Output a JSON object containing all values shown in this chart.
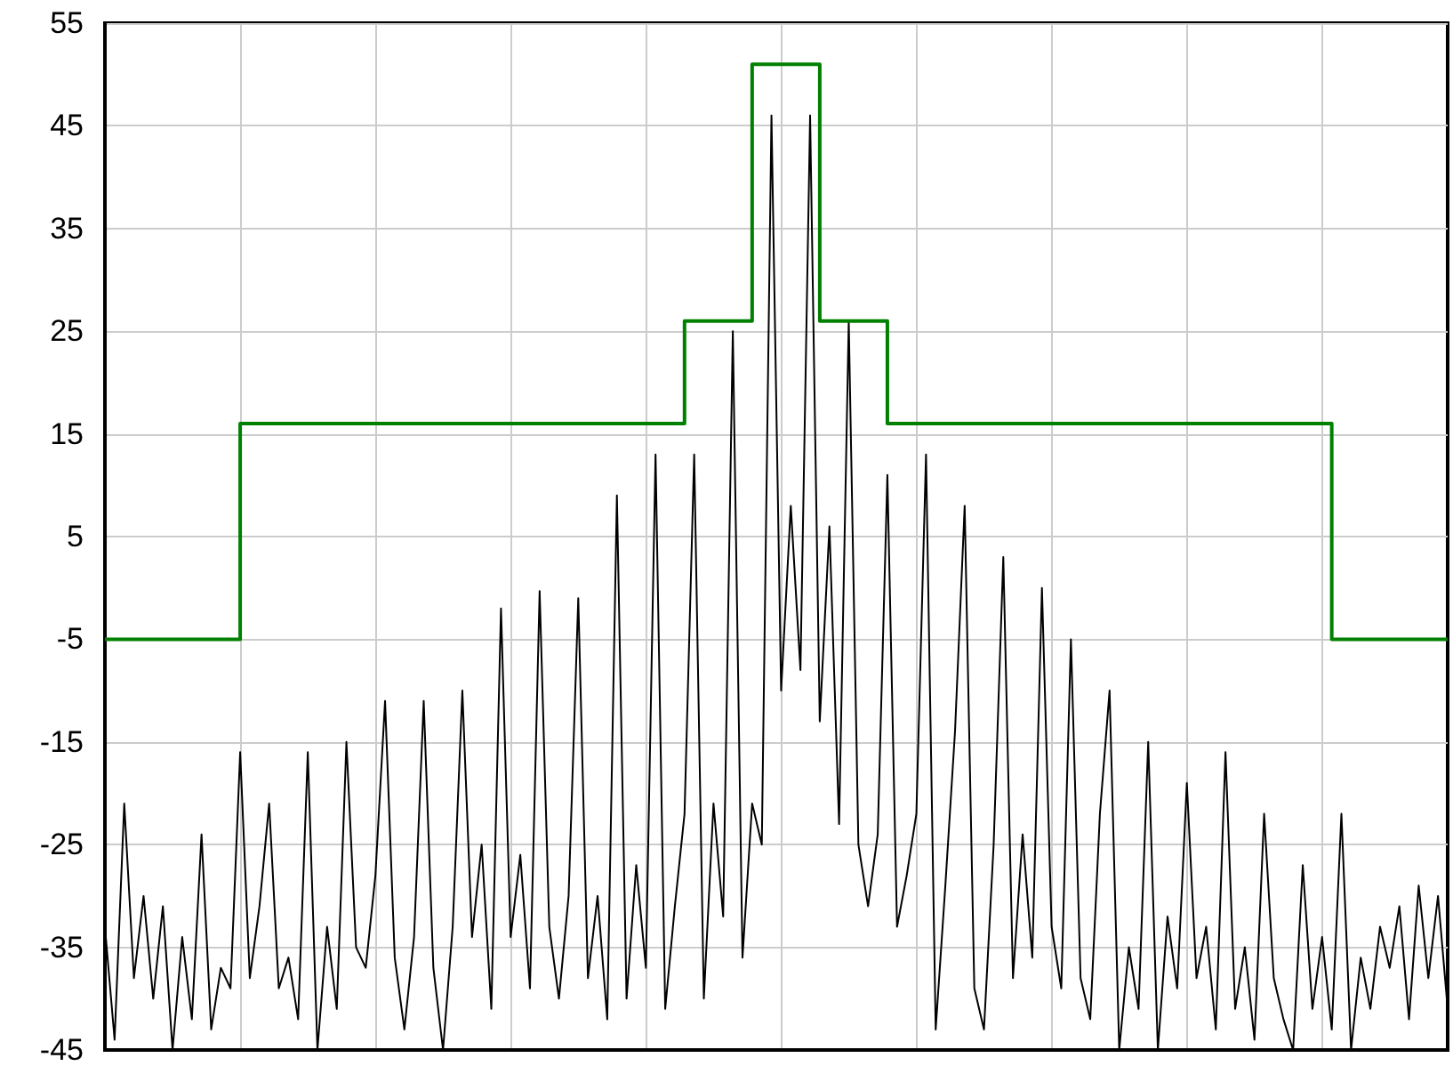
{
  "chart_data": {
    "type": "line",
    "categories": [
      null,
      null,
      null,
      null,
      null,
      null,
      null,
      null,
      null,
      null,
      null,
      null,
      null,
      null,
      null,
      null,
      null,
      null,
      null,
      null,
      null,
      null,
      null,
      null,
      null,
      null,
      null,
      null,
      null,
      null,
      null,
      null,
      null,
      null,
      null,
      null,
      null,
      null,
      null,
      null,
      null,
      null,
      null,
      null,
      null,
      null,
      null,
      null,
      null,
      null,
      null,
      null,
      null,
      null,
      null,
      null,
      null,
      null,
      null,
      null,
      null,
      null,
      null,
      null,
      null,
      null,
      null,
      null,
      null,
      null,
      null,
      null,
      null,
      null,
      null,
      null,
      null,
      null,
      null,
      null,
      null,
      null,
      null,
      null,
      null,
      null,
      null,
      null,
      null,
      null,
      null,
      null,
      null,
      null,
      null,
      null,
      null,
      null,
      null,
      null,
      null,
      null,
      null,
      null,
      null,
      null,
      null,
      null,
      null,
      null,
      null,
      null,
      null,
      null,
      null,
      null,
      null,
      null,
      null,
      null,
      null,
      null,
      null,
      null,
      null,
      null,
      null,
      null,
      null,
      null,
      null,
      null,
      null,
      null,
      null,
      null,
      null,
      null,
      null,
      null
    ],
    "ylim": [
      -45,
      55
    ],
    "yticks": [
      -45,
      -35,
      -25,
      -15,
      -5,
      5,
      15,
      25,
      35,
      45,
      55
    ],
    "grid": true,
    "marker": "none",
    "series": [
      {
        "color": "#000000",
        "values": [
          -33,
          -44,
          -21,
          -38,
          -30,
          -40,
          -31,
          -45,
          -34,
          -42,
          -24,
          -43,
          -37,
          -39,
          -16,
          -38,
          -31,
          -21,
          -39,
          -36,
          -42,
          -16,
          -45,
          -33,
          -41,
          -15,
          -35,
          -37,
          -28,
          -11,
          -36,
          -43,
          -34,
          -11,
          -37,
          -45,
          -33,
          -10,
          -34,
          -25,
          -41,
          -2,
          -34,
          -26,
          -39,
          -0.3,
          -33,
          -40,
          -30,
          -1,
          -38,
          -30,
          -42,
          9,
          -40,
          -27,
          -37,
          13,
          -41,
          -31,
          -22,
          13,
          -40,
          -21,
          -32,
          25,
          -36,
          -21,
          -25,
          46,
          -10,
          8,
          -8,
          46,
          -13,
          6,
          -23,
          26,
          -25,
          -31,
          -24,
          11,
          -33,
          -28,
          -22,
          13,
          -43,
          -29,
          -14,
          8,
          -39,
          -43,
          -25,
          3,
          -38,
          -24,
          -36,
          0,
          -33,
          -39,
          -5,
          -38,
          -42,
          -22,
          -10,
          -45,
          -35,
          -41,
          -15,
          -45,
          -32,
          -39,
          -19,
          -38,
          -33,
          -43,
          -16,
          -41,
          -35,
          -44,
          -22,
          -38,
          -42,
          -45,
          -27,
          -41,
          -34,
          -43,
          -22,
          -45,
          -36,
          -41,
          -33,
          -37,
          -31,
          -42,
          -29,
          -38,
          -30,
          -41
        ]
      },
      {
        "type": "step",
        "color": "#008000",
        "values": [
          -5,
          -5,
          -5,
          -5,
          -5,
          -5,
          -5,
          -5,
          -5,
          -5,
          -5,
          -5,
          -5,
          -5,
          16,
          16,
          16,
          16,
          16,
          16,
          16,
          16,
          16,
          16,
          16,
          16,
          16,
          16,
          16,
          16,
          16,
          16,
          16,
          16,
          16,
          16,
          16,
          16,
          16,
          16,
          16,
          16,
          16,
          16,
          16,
          16,
          16,
          16,
          16,
          16,
          16,
          16,
          16,
          16,
          16,
          16,
          16,
          16,
          16,
          16,
          26,
          26,
          26,
          26,
          26,
          26,
          26,
          51,
          51,
          51,
          51,
          51,
          51,
          51,
          26,
          26,
          26,
          26,
          26,
          26,
          26,
          16,
          16,
          16,
          16,
          16,
          16,
          16,
          16,
          16,
          16,
          16,
          16,
          16,
          16,
          16,
          16,
          16,
          16,
          16,
          16,
          16,
          16,
          16,
          16,
          16,
          16,
          16,
          16,
          16,
          16,
          16,
          16,
          16,
          16,
          16,
          16,
          16,
          16,
          16,
          16,
          16,
          16,
          16,
          16,
          16,
          16,
          -5,
          -5,
          -5,
          -5,
          -5,
          -5,
          -5,
          -5,
          -5,
          -5,
          -5,
          -5,
          -5
        ]
      }
    ]
  }
}
